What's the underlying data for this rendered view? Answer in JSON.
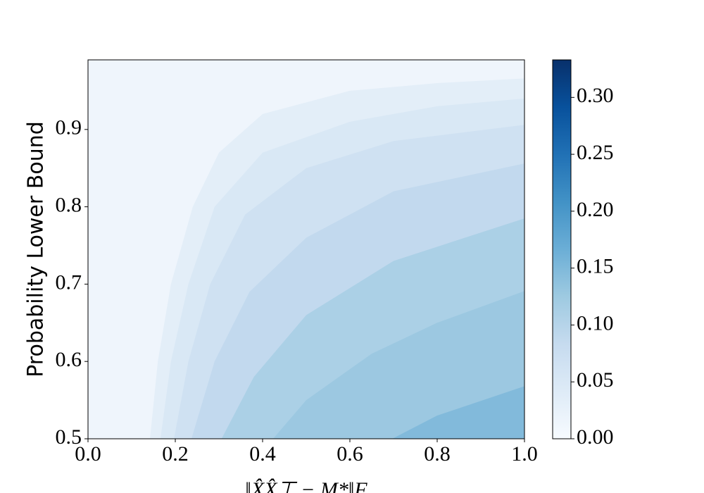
{
  "chart_data": {
    "type": "contour",
    "xlabel": "‖X̂X̂⊤ − M*‖F",
    "ylabel": "Probability Lower Bound",
    "xlim": [
      0,
      1
    ],
    "ylim": [
      0.5,
      0.99
    ],
    "xticks": [
      {
        "value": 0,
        "label": "0.0"
      },
      0.2,
      0.4,
      0.6,
      0.8,
      {
        "value": 1,
        "label": "1.0"
      }
    ],
    "yticks": [
      0.5,
      0.6,
      0.7,
      0.8,
      0.9
    ],
    "colors": [
      "#eff5fc",
      "#e3eef8",
      "#d9e8f5",
      "#cfe1f2",
      "#c2d9ee",
      "#abd0e6",
      "#9cc8e1",
      "#82badb"
    ],
    "contours": [
      {
        "x": [
          0.142,
          0.16,
          0.19,
          0.24,
          0.3,
          0.4,
          0.6,
          0.8,
          1
        ],
        "y": [
          0.5,
          0.6,
          0.7,
          0.8,
          0.87,
          0.92,
          0.95,
          0.96,
          0.966
        ]
      },
      {
        "x": [
          0.166,
          0.19,
          0.23,
          0.29,
          0.4,
          0.6,
          0.8,
          1
        ],
        "y": [
          0.5,
          0.6,
          0.7,
          0.8,
          0.87,
          0.91,
          0.93,
          0.94
        ]
      },
      {
        "x": [
          0.197,
          0.23,
          0.28,
          0.36,
          0.5,
          0.7,
          1
        ],
        "y": [
          0.5,
          0.6,
          0.7,
          0.79,
          0.85,
          0.885,
          0.906
        ]
      },
      {
        "x": [
          0.237,
          0.29,
          0.37,
          0.5,
          0.7,
          1
        ],
        "y": [
          0.5,
          0.6,
          0.69,
          0.76,
          0.82,
          0.856
        ]
      },
      {
        "x": [
          0.306,
          0.38,
          0.5,
          0.7,
          1
        ],
        "y": [
          0.5,
          0.58,
          0.66,
          0.73,
          0.785
        ]
      },
      {
        "x": [
          0.424,
          0.5,
          0.65,
          0.8,
          1
        ],
        "y": [
          0.5,
          0.55,
          0.61,
          0.65,
          0.691
        ]
      },
      {
        "x": [
          0.697,
          0.8,
          1
        ],
        "y": [
          0.5,
          0.53,
          0.568
        ]
      }
    ],
    "colorbar": {
      "lim": [
        0,
        0.333
      ],
      "ticks": [
        {
          "value": 0,
          "label": "0.00"
        },
        {
          "value": 0.05,
          "label": "0.05"
        },
        {
          "value": 0.1,
          "label": "0.10"
        },
        {
          "value": 0.15,
          "label": "0.15"
        },
        {
          "value": 0.2,
          "label": "0.20"
        },
        {
          "value": 0.25,
          "label": "0.25"
        },
        {
          "value": 0.3,
          "label": "0.30"
        }
      ],
      "colors": [
        "#f7fbff",
        "#deebf7",
        "#c6dbef",
        "#9ecae1",
        "#6baed6",
        "#4292c6",
        "#2171b5",
        "#08519c",
        "#08306b"
      ]
    }
  }
}
